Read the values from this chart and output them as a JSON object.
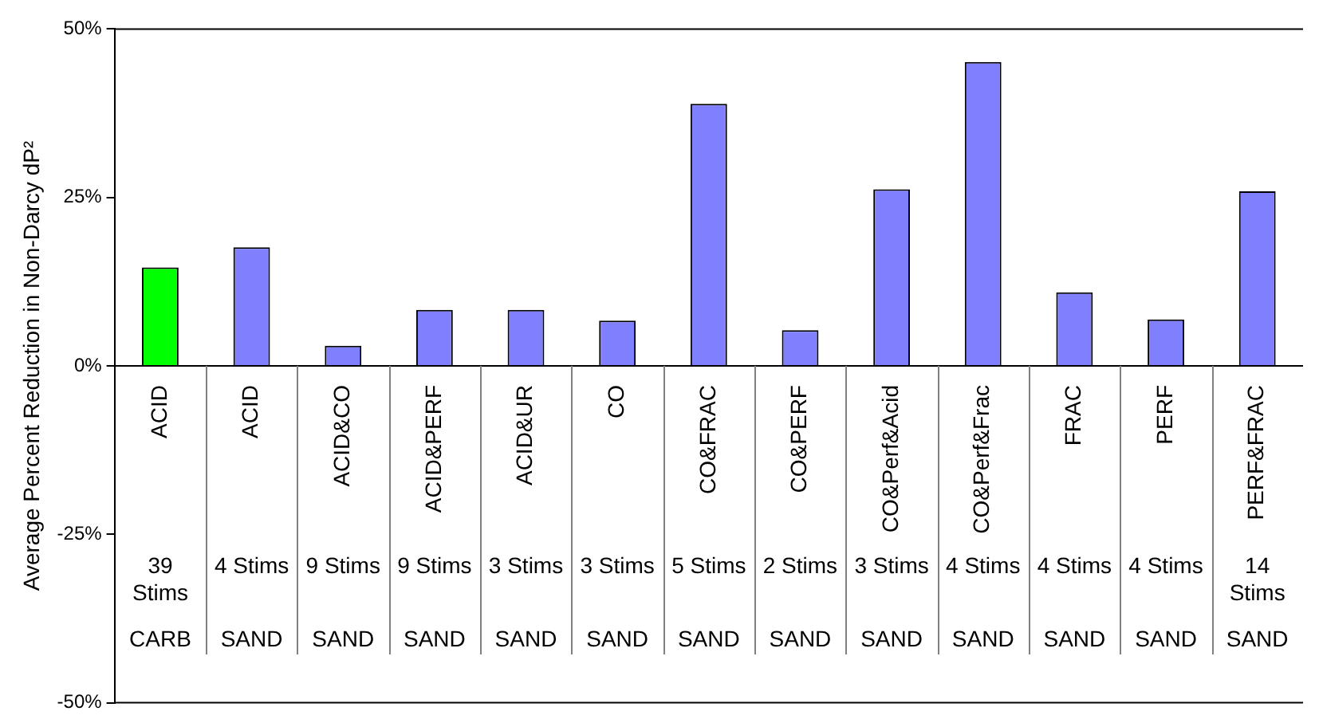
{
  "chart_data": {
    "type": "bar",
    "ylabel": "Average Percent Reduction in Non-Darcy dP²",
    "categories": [
      "ACID\n39 Stims\nCARB",
      "ACID\n4 Stims\nSAND",
      "ACID&CO\n9 Stims\nSAND",
      "ACID&PERF\n9 Stims\nSAND",
      "ACID&UR\n3 Stims\nSAND",
      "CO\n3 Stims\nSAND",
      "CO&FRAC\n5 Stims\nSAND",
      "CO&PERF\n2 Stims\nSAND",
      "CO&Perf&Acid\n3 Stims\nSAND",
      "CO&Perf&Frac\n4 Stims\nSAND",
      "FRAC\n4 Stims\nSAND",
      "PERF\n4 Stims\nSAND",
      "PERF&FRAC\n14 Stims\nSAND"
    ],
    "values": [
      14.6,
      17.6,
      3.0,
      8.3,
      8.3,
      6.7,
      38.9,
      5.3,
      26.2,
      45.1,
      10.9,
      6.9,
      25.9
    ],
    "colors": [
      "#00ff00",
      "#8080ff",
      "#8080ff",
      "#8080ff",
      "#8080ff",
      "#8080ff",
      "#8080ff",
      "#8080ff",
      "#8080ff",
      "#8080ff",
      "#8080ff",
      "#8080ff",
      "#8080ff"
    ],
    "ylim": [
      -50,
      50
    ],
    "yticks": [
      {
        "value": -50,
        "label": "-50%"
      },
      {
        "value": -25,
        "label": "-25%"
      },
      {
        "value": 0,
        "label": "0%"
      },
      {
        "value": 25,
        "label": "25%"
      },
      {
        "value": 50,
        "label": "50%"
      }
    ],
    "legend": false
  }
}
